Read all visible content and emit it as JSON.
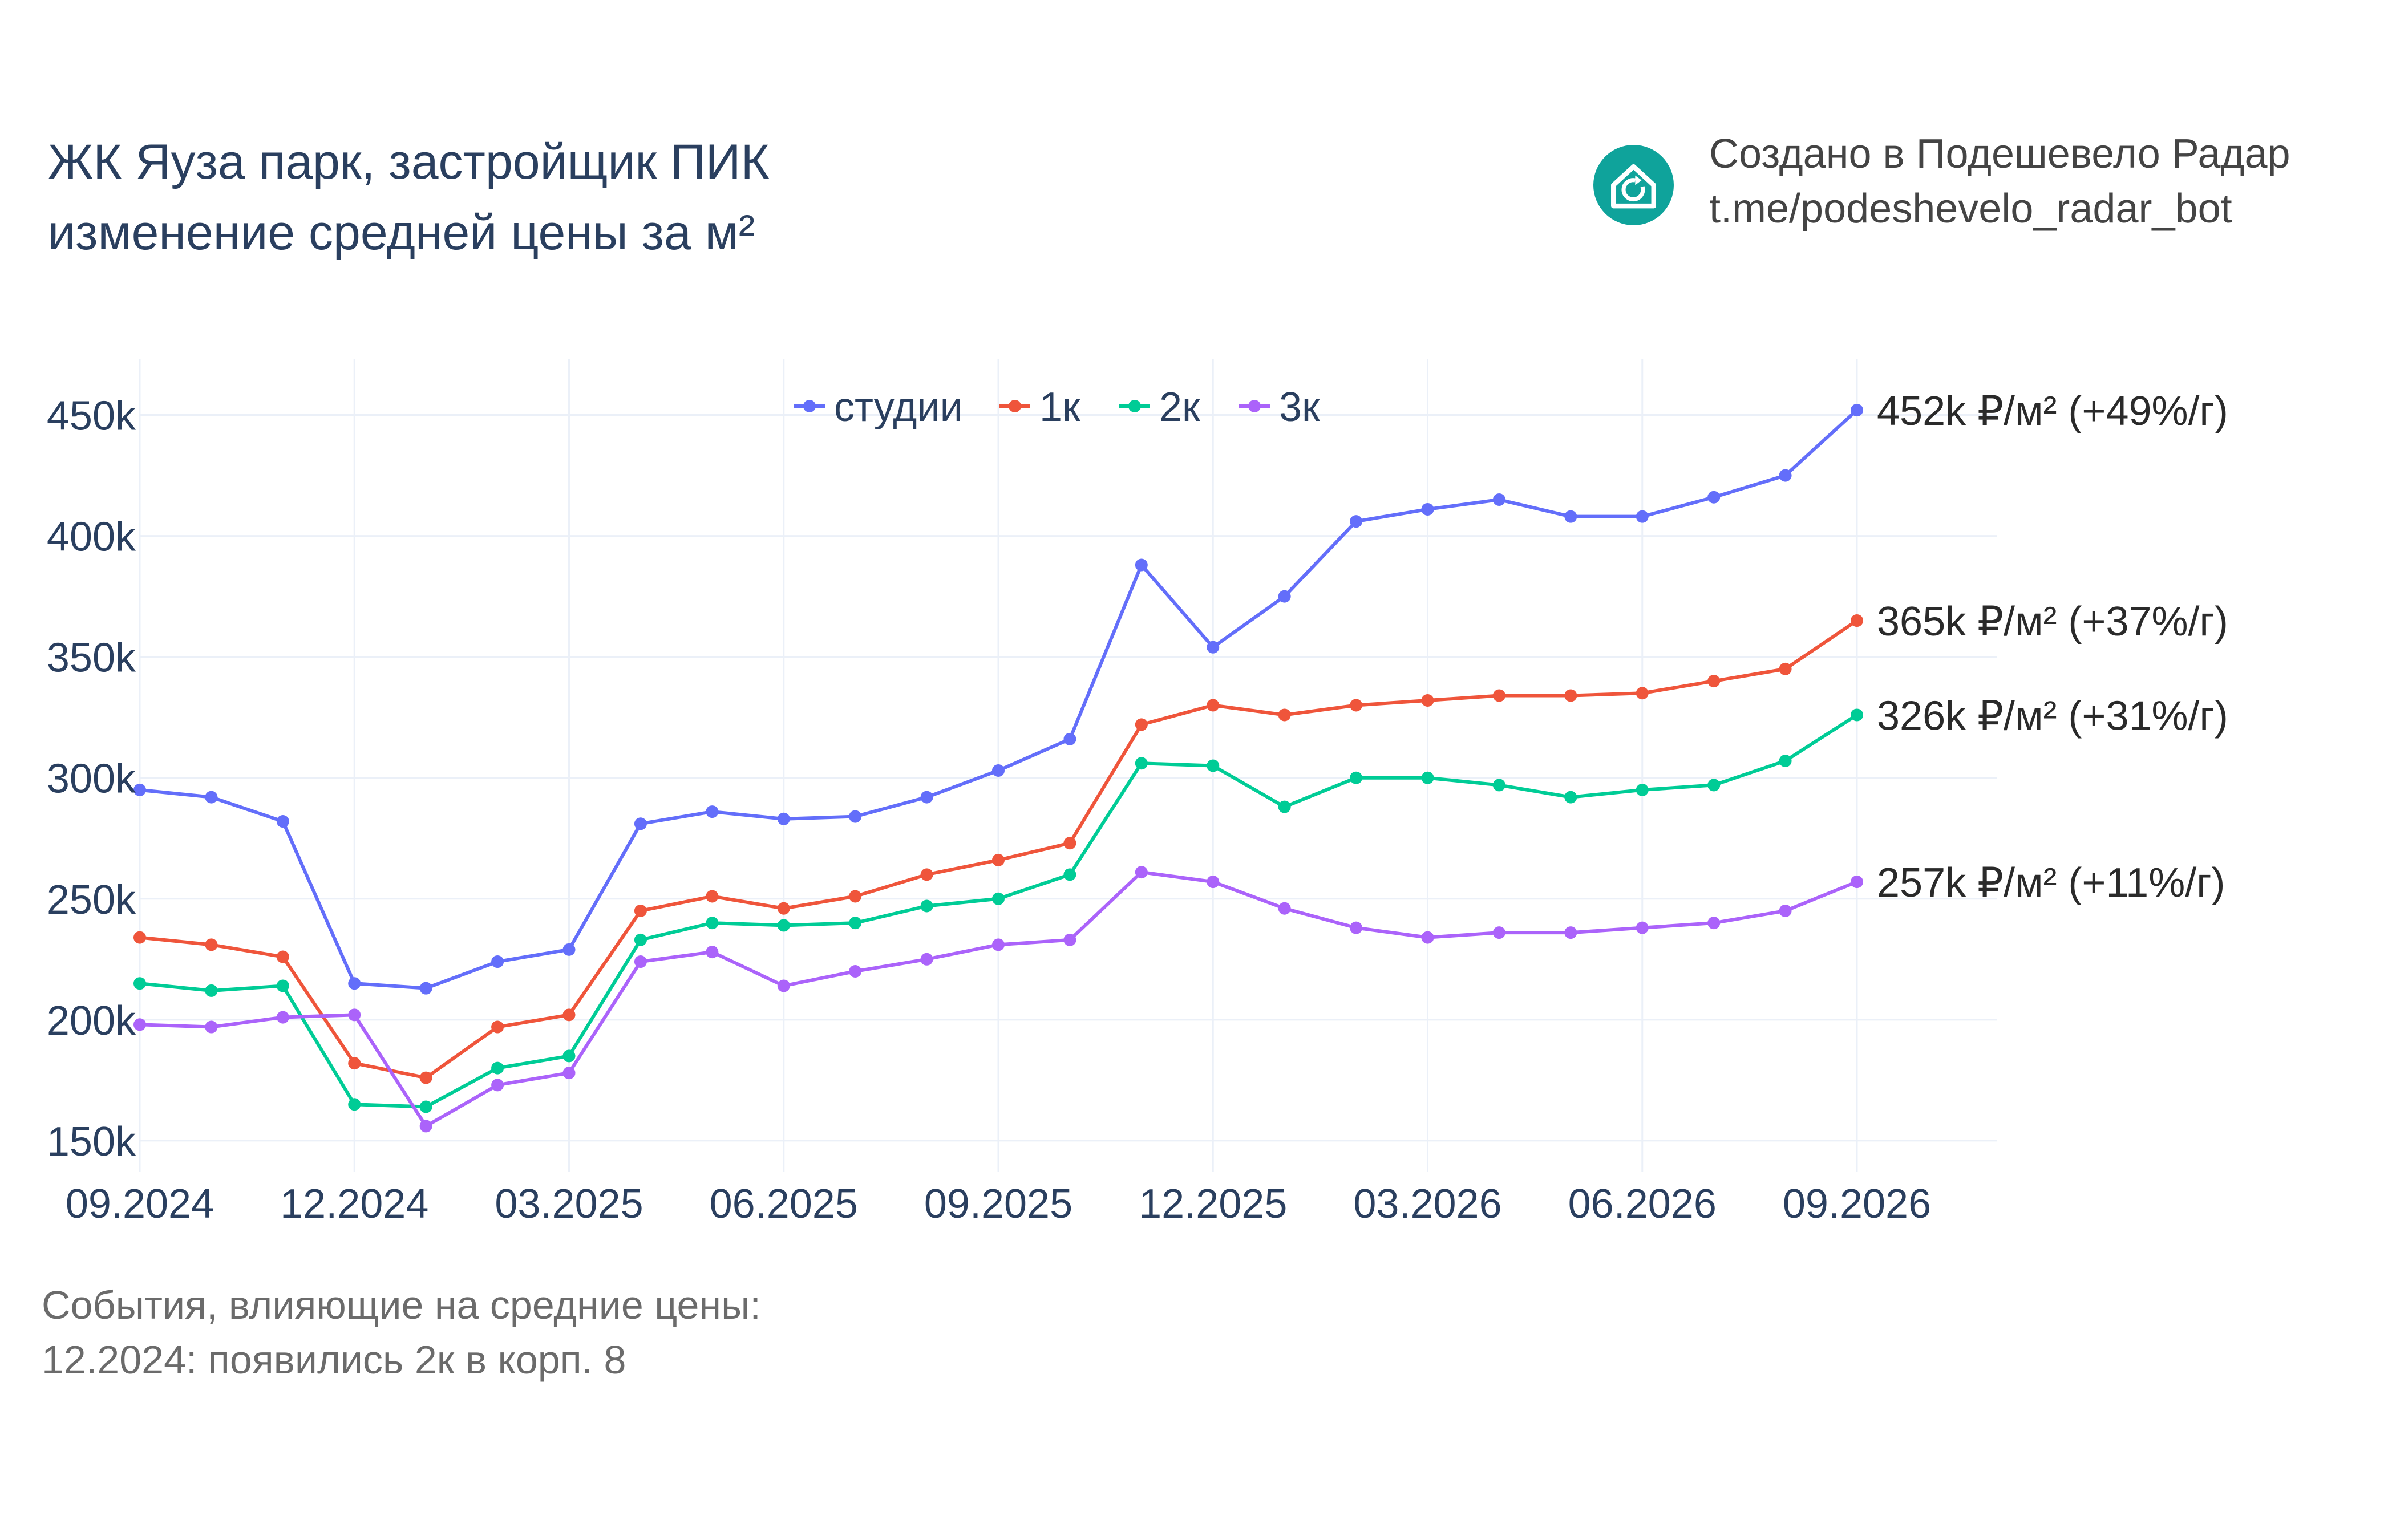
{
  "title": {
    "line1": "ЖК Яуза парк, застройщик ПИК",
    "line2": "изменение средней цены за м²"
  },
  "credit": {
    "line1": "Создано в Подешевело Радар",
    "line2": "t.me/podeshevelo_radar_bot",
    "logo_icon": "house-refresh-icon",
    "logo_color": "#0fa39b"
  },
  "events": {
    "heading": "События, влияющие на средние цены:",
    "items": [
      "12.2024: появились 2к в корп. 8"
    ]
  },
  "chart_data": {
    "type": "line",
    "x": [
      "09.2024",
      "10.2024",
      "11.2024",
      "12.2024",
      "01.2025",
      "02.2025",
      "03.2025",
      "04.2025",
      "05.2025",
      "06.2025",
      "07.2025",
      "08.2025",
      "09.2025",
      "10.2025",
      "11.2025",
      "12.2025",
      "01.2026",
      "02.2026",
      "03.2026",
      "04.2026",
      "05.2026",
      "06.2026",
      "07.2026",
      "08.2026",
      "09.2026"
    ],
    "x_tick_labels": [
      "09.2024",
      "12.2024",
      "03.2025",
      "06.2025",
      "09.2025",
      "12.2025",
      "03.2026",
      "06.2026",
      "09.2026"
    ],
    "y_ticks": [
      150000,
      200000,
      250000,
      300000,
      350000,
      400000,
      450000
    ],
    "y_tick_labels": [
      "150k",
      "200k",
      "250k",
      "300k",
      "350k",
      "400k",
      "450k"
    ],
    "ylim": [
      137000,
      473000
    ],
    "grid": true,
    "legend_position": "top-center",
    "series": [
      {
        "name": "студии",
        "color": "#636efa",
        "values": [
          295000,
          292000,
          282000,
          215000,
          213000,
          224000,
          229000,
          281000,
          286000,
          283000,
          284000,
          292000,
          303000,
          316000,
          388000,
          354000,
          375000,
          406000,
          411000,
          415000,
          408000,
          408000,
          416000,
          425000,
          452000
        ],
        "end_label": "452k ₽/м² (+49%/г)"
      },
      {
        "name": "1к",
        "color": "#ef553b",
        "values": [
          234000,
          231000,
          226000,
          182000,
          176000,
          197000,
          202000,
          245000,
          251000,
          246000,
          251000,
          260000,
          266000,
          273000,
          322000,
          330000,
          326000,
          330000,
          332000,
          334000,
          334000,
          335000,
          340000,
          345000,
          365000
        ],
        "end_label": "365k ₽/м² (+37%/г)"
      },
      {
        "name": "2к",
        "color": "#00cc96",
        "values": [
          215000,
          212000,
          214000,
          165000,
          164000,
          180000,
          185000,
          233000,
          240000,
          239000,
          240000,
          247000,
          250000,
          260000,
          306000,
          305000,
          288000,
          300000,
          300000,
          297000,
          292000,
          295000,
          297000,
          307000,
          326000
        ],
        "end_label": "326k ₽/м² (+31%/г)"
      },
      {
        "name": "3к",
        "color": "#ab63fa",
        "values": [
          198000,
          197000,
          201000,
          202000,
          156000,
          173000,
          178000,
          224000,
          228000,
          214000,
          220000,
          225000,
          231000,
          233000,
          261000,
          257000,
          246000,
          238000,
          234000,
          236000,
          236000,
          238000,
          240000,
          245000,
          257000
        ],
        "end_label": "257k ₽/м² (+11%/г)"
      }
    ]
  }
}
